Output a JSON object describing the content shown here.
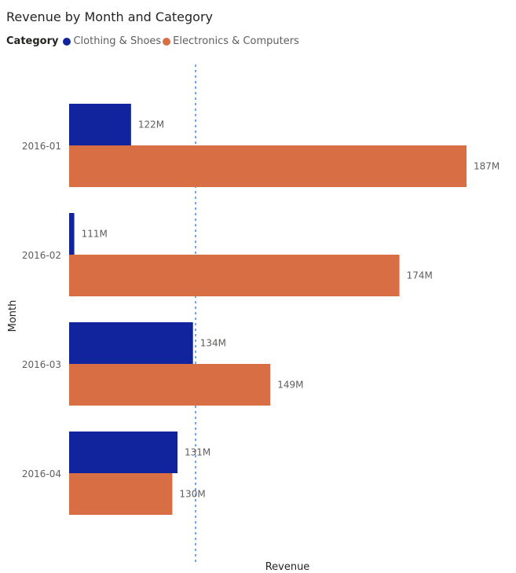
{
  "chart_data": {
    "type": "bar",
    "orientation": "horizontal",
    "title": "Revenue by Month and Category",
    "xlabel": "Revenue",
    "ylabel": "Month",
    "legend_title": "Category",
    "legend_placement": "top-left",
    "categories": [
      "2016-01",
      "2016-02",
      "2016-03",
      "2016-04"
    ],
    "series": [
      {
        "name": "Clothing & Shoes",
        "color": "#12239e",
        "values": [
          122,
          111,
          134,
          131
        ],
        "labels": [
          "122M",
          "111M",
          "134M",
          "131M"
        ]
      },
      {
        "name": "Electronics & Computers",
        "color": "#d86f44",
        "values": [
          187,
          174,
          149,
          130
        ],
        "labels": [
          "187M",
          "174M",
          "149M",
          "130M"
        ]
      }
    ],
    "xlim": [
      110,
      187
    ],
    "reference_line": {
      "value": 134.5,
      "style": "dotted",
      "color": "#6fa8f0"
    },
    "grid": false
  }
}
